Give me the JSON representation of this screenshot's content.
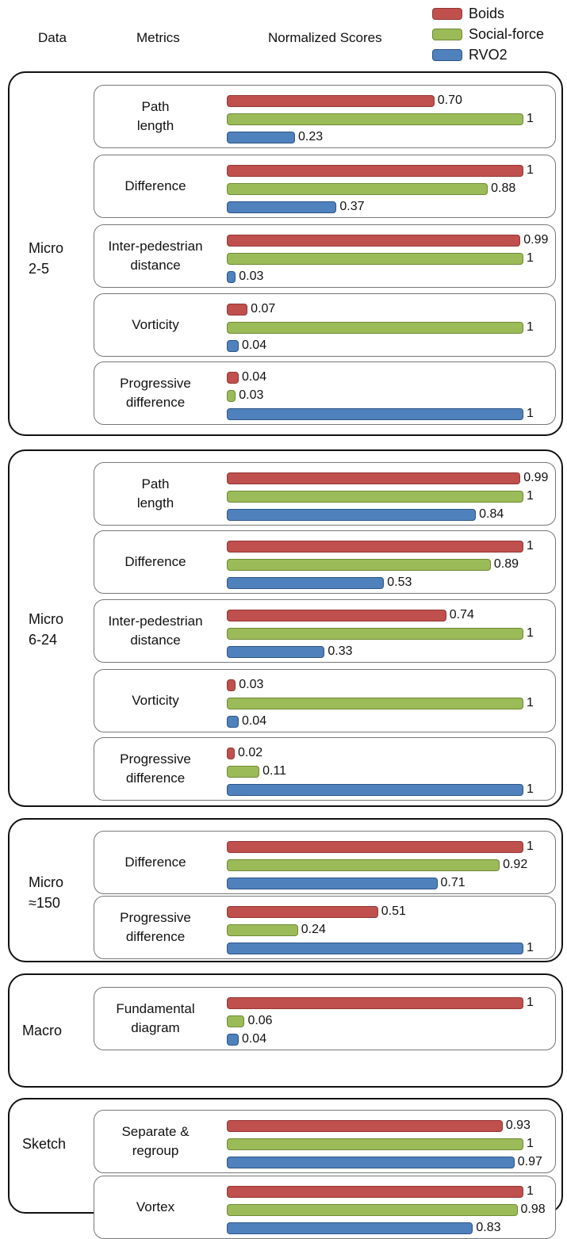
{
  "headers": {
    "data": "Data",
    "metrics": "Metrics",
    "scores": "Normalized Scores"
  },
  "legend": [
    {
      "name": "Boids",
      "color": "#c0504d",
      "border": "#943634"
    },
    {
      "name": "Social-force",
      "color": "#9bbb59",
      "border": "#6f8a35"
    },
    {
      "name": "RVO2",
      "color": "#4f81bd",
      "border": "#2c5585"
    }
  ],
  "chart_data": {
    "type": "bar",
    "orientation": "horizontal",
    "xlim": [
      0,
      1
    ],
    "series_names": [
      "Boids",
      "Social-force",
      "RVO2"
    ],
    "groups": [
      {
        "name": "Micro\n2-5",
        "metrics": [
          {
            "name": "Path\nlength",
            "values": [
              0.7,
              1,
              0.23
            ],
            "labels": [
              "0.70",
              "1",
              "0.23"
            ]
          },
          {
            "name": "Difference",
            "values": [
              1,
              0.88,
              0.37
            ],
            "labels": [
              "1",
              "0.88",
              "0.37"
            ]
          },
          {
            "name": "Inter-pedestrian\ndistance",
            "values": [
              0.99,
              1,
              0.03
            ],
            "labels": [
              "0.99",
              "1",
              "0.03"
            ]
          },
          {
            "name": "Vorticity",
            "values": [
              0.07,
              1,
              0.04
            ],
            "labels": [
              "0.07",
              "1",
              "0.04"
            ]
          },
          {
            "name": "Progressive\ndifference",
            "values": [
              0.04,
              0.03,
              1
            ],
            "labels": [
              "0.04",
              "0.03",
              "1"
            ]
          }
        ]
      },
      {
        "name": "Micro\n6-24",
        "metrics": [
          {
            "name": "Path\nlength",
            "values": [
              0.99,
              1,
              0.84
            ],
            "labels": [
              "0.99",
              "1",
              "0.84"
            ]
          },
          {
            "name": "Difference",
            "values": [
              1,
              0.89,
              0.53
            ],
            "labels": [
              "1",
              "0.89",
              "0.53"
            ]
          },
          {
            "name": "Inter-pedestrian\ndistance",
            "values": [
              0.74,
              1,
              0.33
            ],
            "labels": [
              "0.74",
              "1",
              "0.33"
            ]
          },
          {
            "name": "Vorticity",
            "values": [
              0.03,
              1,
              0.04
            ],
            "labels": [
              "0.03",
              "1",
              "0.04"
            ]
          },
          {
            "name": "Progressive\ndifference",
            "values": [
              0.02,
              0.11,
              1
            ],
            "labels": [
              "0.02",
              "0.11",
              "1"
            ]
          }
        ]
      },
      {
        "name": "Micro\n≈150",
        "metrics": [
          {
            "name": "Difference",
            "values": [
              1,
              0.92,
              0.71
            ],
            "labels": [
              "1",
              "0.92",
              "0.71"
            ]
          },
          {
            "name": "Progressive\ndifference",
            "values": [
              0.51,
              0.24,
              1
            ],
            "labels": [
              "0.51",
              "0.24",
              "1"
            ]
          }
        ]
      },
      {
        "name": "Macro",
        "metrics": [
          {
            "name": "Fundamental\ndiagram",
            "values": [
              1,
              0.06,
              0.04
            ],
            "labels": [
              "1",
              "0.06",
              "0.04"
            ]
          }
        ]
      },
      {
        "name": "Sketch",
        "metrics": [
          {
            "name": "Separate &\nregroup",
            "values": [
              0.93,
              1,
              0.97
            ],
            "labels": [
              "0.93",
              "1",
              "0.97"
            ]
          },
          {
            "name": "Vortex",
            "values": [
              1,
              0.98,
              0.83
            ],
            "labels": [
              "1",
              "0.98",
              "0.83"
            ]
          }
        ]
      }
    ]
  }
}
